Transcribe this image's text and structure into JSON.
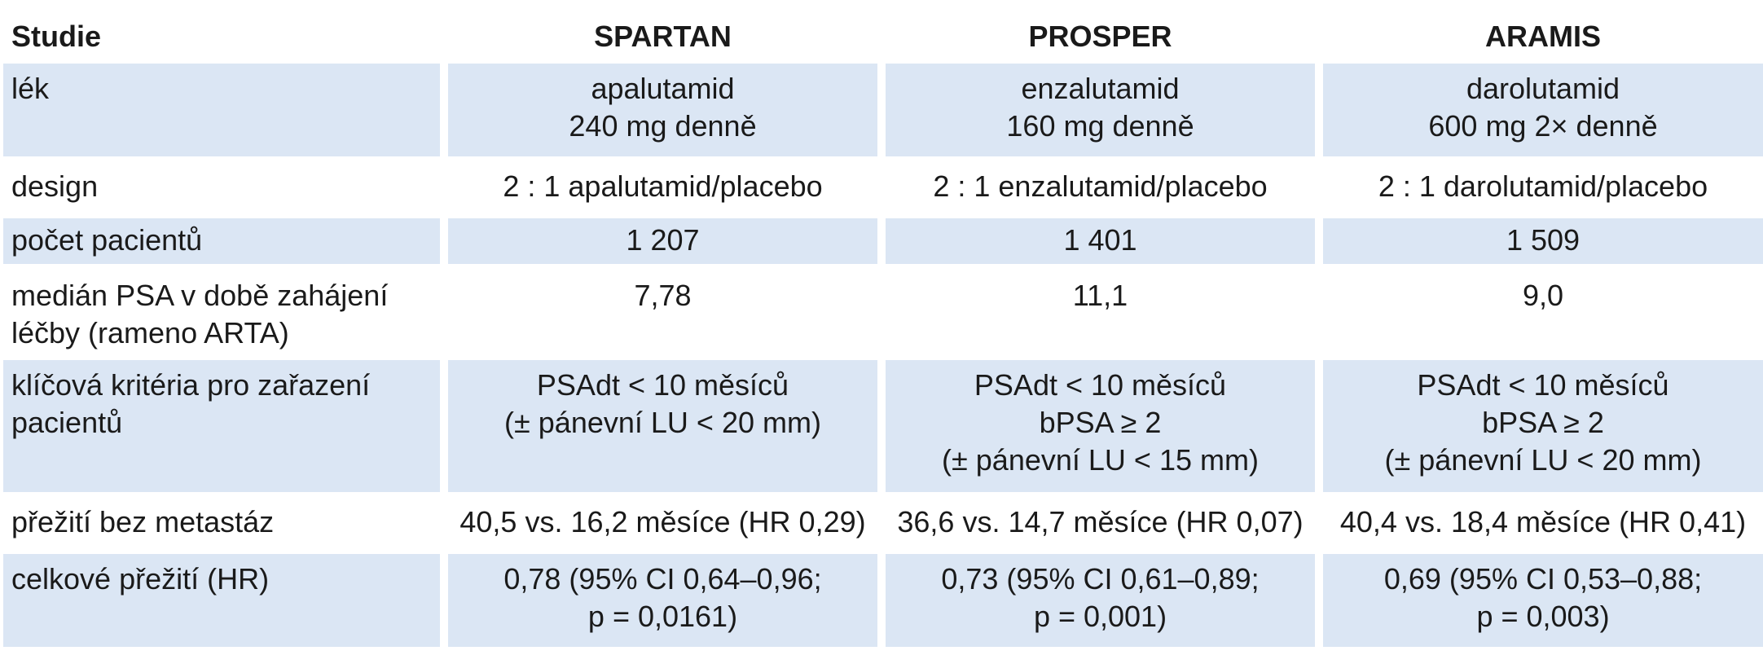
{
  "table": {
    "headers": [
      "Studie",
      "SPARTAN",
      "PROSPER",
      "ARAMIS"
    ],
    "rows": [
      {
        "label": [
          "lék"
        ],
        "cells": [
          [
            "apalutamid",
            "240 mg denně"
          ],
          [
            "enzalutamid",
            "160 mg denně"
          ],
          [
            "darolutamid",
            "600 mg 2× denně"
          ]
        ]
      },
      {
        "label": [
          "design"
        ],
        "cells": [
          [
            "2 : 1 apalutamid/placebo"
          ],
          [
            "2 : 1 enzalutamid/placebo"
          ],
          [
            "2 : 1 darolutamid/placebo"
          ]
        ]
      },
      {
        "label": [
          "počet pacientů"
        ],
        "cells": [
          [
            "1 207"
          ],
          [
            "1 401"
          ],
          [
            "1 509"
          ]
        ]
      },
      {
        "label": [
          "medián PSA v době zahájení",
          "léčby (rameno ARTA)"
        ],
        "cells": [
          [
            "7,78"
          ],
          [
            "11,1"
          ],
          [
            "9,0"
          ]
        ]
      },
      {
        "label": [
          "klíčová kritéria pro zařazení",
          "pacientů"
        ],
        "cells": [
          [
            "PSAdt < 10 měsíců",
            "(± pánevní LU < 20 mm)"
          ],
          [
            "PSAdt < 10 měsíců",
            "bPSA ≥ 2",
            "(± pánevní LU < 15 mm)"
          ],
          [
            "PSAdt < 10 měsíců",
            "bPSA ≥ 2",
            "(± pánevní LU < 20 mm)"
          ]
        ]
      },
      {
        "label": [
          "přežití bez metastáz"
        ],
        "cells": [
          [
            "40,5 vs. 16,2 měsíce (HR 0,29)"
          ],
          [
            "36,6 vs. 14,7 měsíce (HR 0,07)"
          ],
          [
            "40,4 vs. 18,4 měsíce (HR 0,41)"
          ]
        ]
      },
      {
        "label": [
          "celkové přežití (HR)"
        ],
        "cells": [
          [
            "0,78 (95% CI 0,64–0,96;",
            "p = 0,0161)"
          ],
          [
            "0,73 (95% CI 0,61–0,89;",
            "p = 0,001)"
          ],
          [
            "0,69 (95% CI 0,53–0,88;",
            "p = 0,003)"
          ]
        ]
      }
    ]
  }
}
